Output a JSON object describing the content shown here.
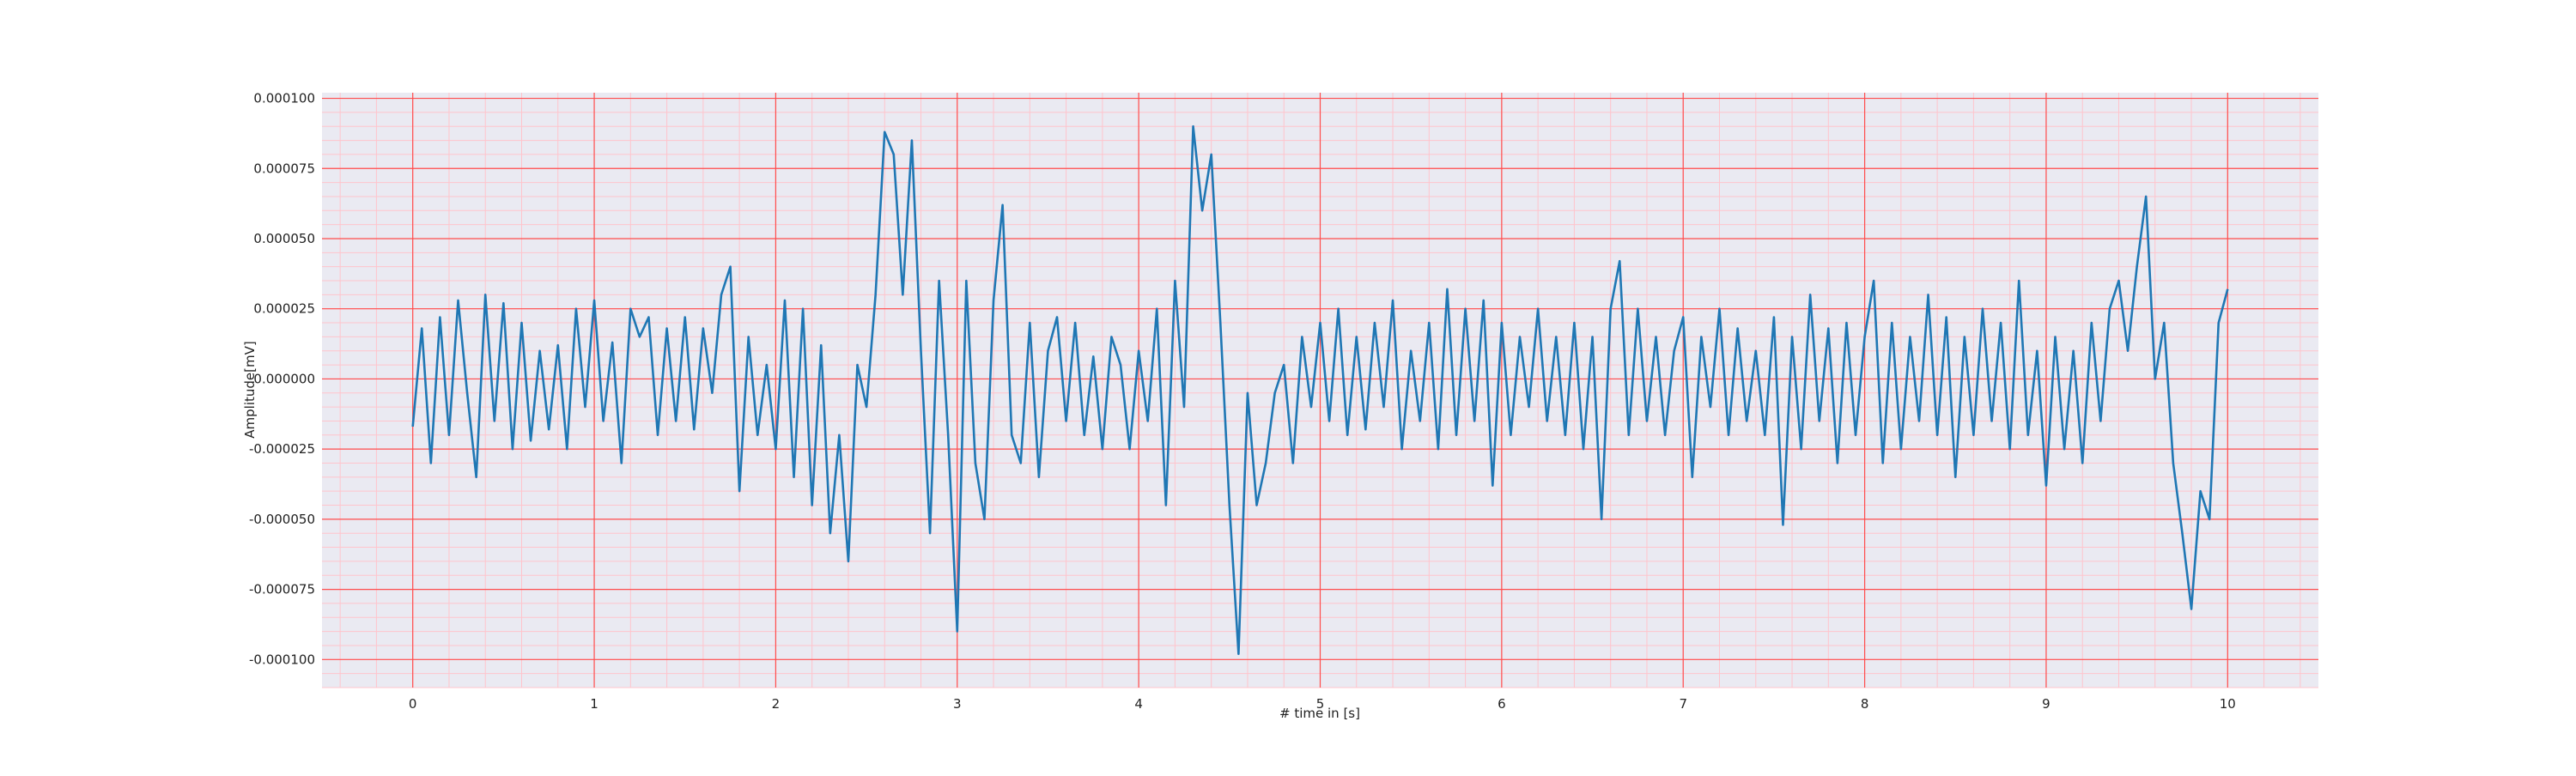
{
  "chart_data": {
    "type": "line",
    "xlabel": "# time in [s]",
    "ylabel": "Amplitude[mV]",
    "x": [
      0,
      0.05,
      0.1,
      0.15,
      0.2,
      0.25,
      0.3,
      0.35,
      0.4,
      0.45,
      0.5,
      0.55,
      0.6,
      0.65,
      0.7,
      0.75,
      0.8,
      0.85,
      0.9,
      0.95,
      1,
      1.05,
      1.1,
      1.15,
      1.2,
      1.25,
      1.3,
      1.35,
      1.4,
      1.45,
      1.5,
      1.55,
      1.6,
      1.65,
      1.7,
      1.75,
      1.8,
      1.85,
      1.9,
      1.95,
      2,
      2.05,
      2.1,
      2.15,
      2.2,
      2.25,
      2.3,
      2.35,
      2.4,
      2.45,
      2.5,
      2.55,
      2.6,
      2.65,
      2.7,
      2.75,
      2.8,
      2.85,
      2.9,
      2.95,
      3,
      3.05,
      3.1,
      3.15,
      3.2,
      3.25,
      3.3,
      3.35,
      3.4,
      3.45,
      3.5,
      3.55,
      3.6,
      3.65,
      3.7,
      3.75,
      3.8,
      3.85,
      3.9,
      3.95,
      4,
      4.05,
      4.1,
      4.15,
      4.2,
      4.25,
      4.3,
      4.35,
      4.4,
      4.45,
      4.5,
      4.55,
      4.6,
      4.65,
      4.7,
      4.75,
      4.8,
      4.85,
      4.9,
      4.95,
      5,
      5.05,
      5.1,
      5.15,
      5.2,
      5.25,
      5.3,
      5.35,
      5.4,
      5.45,
      5.5,
      5.55,
      5.6,
      5.65,
      5.7,
      5.75,
      5.8,
      5.85,
      5.9,
      5.95,
      6,
      6.05,
      6.1,
      6.15,
      6.2,
      6.25,
      6.3,
      6.35,
      6.4,
      6.45,
      6.5,
      6.55,
      6.6,
      6.65,
      6.7,
      6.75,
      6.8,
      6.85,
      6.9,
      6.95,
      7,
      7.05,
      7.1,
      7.15,
      7.2,
      7.25,
      7.3,
      7.35,
      7.4,
      7.45,
      7.5,
      7.55,
      7.6,
      7.65,
      7.7,
      7.75,
      7.8,
      7.85,
      7.9,
      7.95,
      8,
      8.05,
      8.1,
      8.15,
      8.2,
      8.25,
      8.3,
      8.35,
      8.4,
      8.45,
      8.5,
      8.55,
      8.6,
      8.65,
      8.7,
      8.75,
      8.8,
      8.85,
      8.9,
      8.95,
      9,
      9.05,
      9.1,
      9.15,
      9.2,
      9.25,
      9.3,
      9.35,
      9.4,
      9.45,
      9.5,
      9.55,
      9.6,
      9.65,
      9.7,
      9.75,
      9.8,
      9.85,
      9.9,
      9.95,
      10
    ],
    "series": [
      {
        "color": "#1f77b4",
        "values": [
          -1.7e-05,
          1.8e-05,
          -3e-05,
          2.2e-05,
          -2e-05,
          2.8e-05,
          -5e-06,
          -3.5e-05,
          3e-05,
          -1.5e-05,
          2.7e-05,
          -2.5e-05,
          2e-05,
          -2.2e-05,
          1e-05,
          -1.8e-05,
          1.2e-05,
          -2.5e-05,
          2.5e-05,
          -1e-05,
          2.8e-05,
          -1.5e-05,
          1.3e-05,
          -3e-05,
          2.5e-05,
          1.5e-05,
          2.2e-05,
          -2e-05,
          1.8e-05,
          -1.5e-05,
          2.2e-05,
          -1.8e-05,
          1.8e-05,
          -5e-06,
          3e-05,
          4e-05,
          -4e-05,
          1.5e-05,
          -2e-05,
          5e-06,
          -2.5e-05,
          2.8e-05,
          -3.5e-05,
          2.5e-05,
          -4.5e-05,
          1.2e-05,
          -5.5e-05,
          -2e-05,
          -6.5e-05,
          5e-06,
          -1e-05,
          3e-05,
          8.8e-05,
          8e-05,
          3e-05,
          8.5e-05,
          1e-05,
          -5.5e-05,
          3.5e-05,
          -2e-05,
          -9e-05,
          3.5e-05,
          -3e-05,
          -5e-05,
          2.8e-05,
          6.2e-05,
          -2e-05,
          -3e-05,
          2e-05,
          -3.5e-05,
          1e-05,
          2.2e-05,
          -1.5e-05,
          2e-05,
          -2e-05,
          8e-06,
          -2.5e-05,
          1.5e-05,
          5e-06,
          -2.5e-05,
          1e-05,
          -1.5e-05,
          2.5e-05,
          -4.5e-05,
          3.5e-05,
          -1e-05,
          9e-05,
          6e-05,
          8e-05,
          2e-05,
          -4.5e-05,
          -9.8e-05,
          -5e-06,
          -4.5e-05,
          -3e-05,
          -5e-06,
          5e-06,
          -3e-05,
          1.5e-05,
          -1e-05,
          2e-05,
          -1.5e-05,
          2.5e-05,
          -2e-05,
          1.5e-05,
          -1.8e-05,
          2e-05,
          -1e-05,
          2.8e-05,
          -2.5e-05,
          1e-05,
          -1.5e-05,
          2e-05,
          -2.5e-05,
          3.2e-05,
          -2e-05,
          2.5e-05,
          -1.5e-05,
          2.8e-05,
          -3.8e-05,
          2e-05,
          -2e-05,
          1.5e-05,
          -1e-05,
          2.5e-05,
          -1.5e-05,
          1.5e-05,
          -2e-05,
          2e-05,
          -2.5e-05,
          1.5e-05,
          -5e-05,
          2.5e-05,
          4.2e-05,
          -2e-05,
          2.5e-05,
          -1.5e-05,
          1.5e-05,
          -2e-05,
          1e-05,
          2.2e-05,
          -3.5e-05,
          1.5e-05,
          -1e-05,
          2.5e-05,
          -2e-05,
          1.8e-05,
          -1.5e-05,
          1e-05,
          -2e-05,
          2.2e-05,
          -5.2e-05,
          1.5e-05,
          -2.5e-05,
          3e-05,
          -1.5e-05,
          1.8e-05,
          -3e-05,
          2e-05,
          -2e-05,
          1.5e-05,
          3.5e-05,
          -3e-05,
          2e-05,
          -2.5e-05,
          1.5e-05,
          -1.5e-05,
          3e-05,
          -2e-05,
          2.2e-05,
          -3.5e-05,
          1.5e-05,
          -2e-05,
          2.5e-05,
          -1.5e-05,
          2e-05,
          -2.5e-05,
          3.5e-05,
          -2e-05,
          1e-05,
          -3.8e-05,
          1.5e-05,
          -2.5e-05,
          1e-05,
          -3e-05,
          2e-05,
          -1.5e-05,
          2.5e-05,
          3.5e-05,
          1e-05,
          4e-05,
          6.5e-05,
          0,
          2e-05,
          -3e-05,
          -5.5e-05,
          -8.2e-05,
          -4e-05,
          -5e-05,
          2e-05,
          3.2e-05
        ]
      }
    ],
    "xlim": [
      -0.5,
      10.5
    ],
    "ylim": [
      -0.00011,
      0.000102
    ],
    "xticks": [
      0,
      1,
      2,
      3,
      4,
      5,
      6,
      7,
      8,
      9,
      10
    ],
    "yticks": [
      {
        "value": -0.0001,
        "label": "-0.000100"
      },
      {
        "value": -7.5e-05,
        "label": "-0.000075"
      },
      {
        "value": -5e-05,
        "label": "-0.000050"
      },
      {
        "value": -2.5e-05,
        "label": "-0.000025"
      },
      {
        "value": 0,
        "label": "0.000000"
      },
      {
        "value": 2.5e-05,
        "label": "0.000025"
      },
      {
        "value": 5e-05,
        "label": "0.000050"
      },
      {
        "value": 7.5e-05,
        "label": "0.000075"
      },
      {
        "value": 0.0001,
        "label": "0.000100"
      }
    ],
    "grid": true,
    "grid_color": "#ff4d4d",
    "minor_grid": true,
    "minor_grid_color": "#ffc4cc",
    "background": "#eaeaf2"
  }
}
